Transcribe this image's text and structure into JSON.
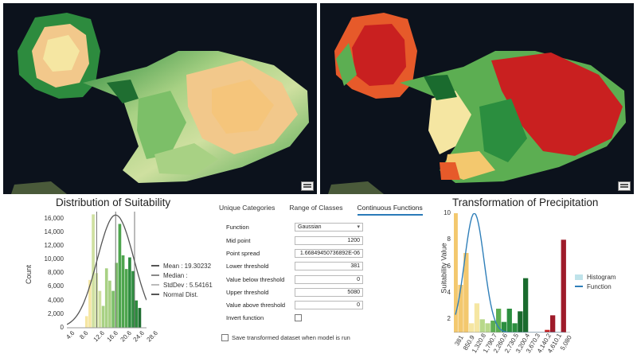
{
  "colors": {
    "suitability_palette": [
      "#e9d27a",
      "#f2c88b",
      "#f5e6a2",
      "#cfe0a0",
      "#a8d184",
      "#7cbf68",
      "#4ea54e",
      "#2d8b3e",
      "#1f6e31"
    ],
    "precip_palette": [
      "#f3c86e",
      "#f5e6a2",
      "#b8d88a",
      "#5cae52",
      "#2b8e3f",
      "#1a6b2e",
      "#e65a2a",
      "#c92020",
      "#9e1b2a"
    ],
    "normal_curve": "#555555",
    "function_curve": "#2f7fb9"
  },
  "suitability": {
    "title": "Distribution of Suitability",
    "y_axis_title": "Count",
    "legend": {
      "mean": "Mean : 19.30232",
      "median": "Median :",
      "stddev": "StdDev : 5.54161",
      "normal": "Normal Dist."
    }
  },
  "params": {
    "tabs": [
      "Unique Categories",
      "Range of Classes",
      "Continuous Functions"
    ],
    "function_label": "Function",
    "function_value": "Gaussian",
    "midpoint_label": "Mid point",
    "midpoint_value": "1200",
    "spread_label": "Point spread",
    "spread_value": "1.66849450736892E-06",
    "lower_label": "Lower threshold",
    "lower_value": "381",
    "below_label": "Value below threshold",
    "below_value": "0",
    "upper_label": "Upper threshold",
    "upper_value": "5080",
    "above_label": "Value above threshold",
    "above_value": "0",
    "invert_label": "Invert function",
    "save_label": "Save transformed dataset when model is run"
  },
  "precip": {
    "title": "Transformation of Precipitation",
    "y_axis_title": "Suitability Value",
    "legend_histogram": "Histogram",
    "legend_function": "Function"
  },
  "chart_data": [
    {
      "type": "bar",
      "title": "Distribution of Suitability",
      "xlabel": "",
      "ylabel": "Count",
      "ylim": [
        0,
        17000
      ],
      "x_ticks": [
        "4.6",
        "8.6",
        "12.6",
        "16.6",
        "20.6",
        "24.6",
        "28.6"
      ],
      "y_ticks": [
        "0",
        "2,000",
        "4,000",
        "6,000",
        "8,000",
        "10,000",
        "12,000",
        "14,000",
        "16,000"
      ],
      "bins": [
        {
          "x": 10.6,
          "value": 1700
        },
        {
          "x": 11.6,
          "value": 7000
        },
        {
          "x": 12.6,
          "value": 16600
        },
        {
          "x": 13.6,
          "value": 8000
        },
        {
          "x": 14.6,
          "value": 5400
        },
        {
          "x": 15.6,
          "value": 3200
        },
        {
          "x": 16.6,
          "value": 8700
        },
        {
          "x": 17.6,
          "value": 6900
        },
        {
          "x": 18.6,
          "value": 5400
        },
        {
          "x": 19.6,
          "value": 9500
        },
        {
          "x": 20.6,
          "value": 15200
        },
        {
          "x": 21.6,
          "value": 10600
        },
        {
          "x": 22.6,
          "value": 8600
        },
        {
          "x": 23.6,
          "value": 10300
        },
        {
          "x": 24.6,
          "value": 8300
        },
        {
          "x": 25.6,
          "value": 4000
        },
        {
          "x": 26.6,
          "value": 2900
        }
      ],
      "mean": 19.30232,
      "stddev": 5.54161,
      "normal_peak": 16500,
      "reference_lines": [
        13.6,
        19.3,
        25.0
      ]
    },
    {
      "type": "bar",
      "title": "Transformation of Precipitation",
      "xlabel": "",
      "ylabel": "Suitability Value",
      "ylim": [
        1,
        10
      ],
      "y_ticks": [
        "2",
        "4",
        "6",
        "8",
        "10"
      ],
      "x_ticks": [
        "381",
        "850.9",
        "1,320.8",
        "1,790.7",
        "2,260.6",
        "2,730.5",
        "3,200.4",
        "3,670.3",
        "4,140.2",
        "4,610.1",
        "5,080"
      ],
      "bins": [
        {
          "x": 381,
          "value": 10.0
        },
        {
          "x": 616,
          "value": 4.6
        },
        {
          "x": 851,
          "value": 7.0
        },
        {
          "x": 1086,
          "value": 1.7
        },
        {
          "x": 1321,
          "value": 3.2
        },
        {
          "x": 1556,
          "value": 2.0
        },
        {
          "x": 1791,
          "value": 1.7
        },
        {
          "x": 2026,
          "value": 1.9
        },
        {
          "x": 2261,
          "value": 2.8
        },
        {
          "x": 2496,
          "value": 1.8
        },
        {
          "x": 2731,
          "value": 2.8
        },
        {
          "x": 2966,
          "value": 1.7
        },
        {
          "x": 3200,
          "value": 2.6
        },
        {
          "x": 3435,
          "value": 5.1
        },
        {
          "x": 4375,
          "value": 1.2
        },
        {
          "x": 4610,
          "value": 2.3
        },
        {
          "x": 5080,
          "value": 8.0
        }
      ],
      "function": "Gaussian",
      "mid_point": 1200,
      "function_peak": 10
    }
  ]
}
